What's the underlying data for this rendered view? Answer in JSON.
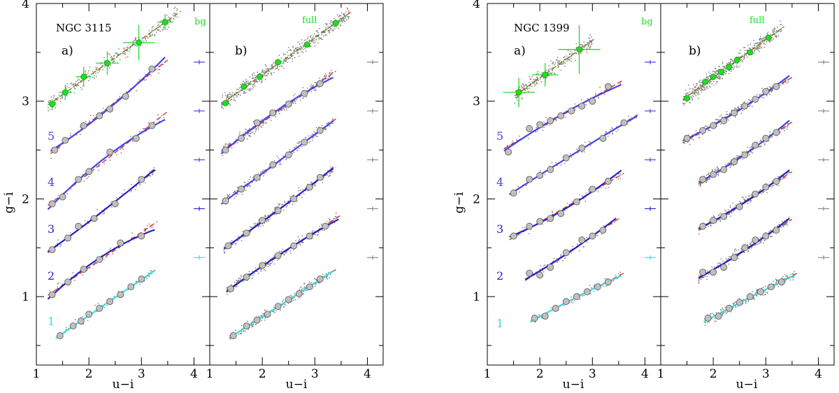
{
  "figure": {
    "xlabel": "u−i",
    "ylabel": "g−i",
    "xlim": [
      1,
      4.3
    ],
    "ylim": [
      0.3,
      4
    ],
    "xticks": [
      "1",
      "2",
      "3",
      "4"
    ],
    "yticks": [
      "1",
      "2",
      "3",
      "4"
    ]
  },
  "chart_data": [
    {
      "type": "scatter",
      "galaxy": "NGC 3115",
      "panel": "a)",
      "title": "NGC 3115",
      "xlabel": "u−i",
      "ylabel": "g−i",
      "xlim": [
        1,
        4.3
      ],
      "ylim": [
        0.3,
        4
      ],
      "bg_label": "bg",
      "row_labels": [
        "1",
        "2",
        "3",
        "4",
        "5"
      ],
      "series": [
        {
          "name": "bg",
          "color": "#22dd22",
          "x": [
            1.3,
            1.55,
            1.9,
            2.35,
            2.95,
            3.45
          ],
          "y": [
            2.97,
            3.09,
            3.25,
            3.39,
            3.6,
            3.81
          ],
          "xerr": [
            0.08,
            0.12,
            0.15,
            0.22,
            0.3,
            0.15
          ],
          "yerr": [
            0.05,
            0.08,
            0.1,
            0.12,
            0.18,
            0.08
          ]
        },
        {
          "name": "5",
          "color": "#4444ee",
          "x": [
            1.35,
            1.55,
            1.9,
            2.2,
            2.4,
            2.7,
            3.2
          ],
          "y": [
            2.5,
            2.6,
            2.75,
            2.85,
            2.92,
            3.05,
            3.33
          ],
          "offset": 2.4
        },
        {
          "name": "4",
          "color": "#4444ee",
          "x": [
            1.3,
            1.5,
            1.8,
            2.0,
            2.4,
            2.9,
            3.2
          ],
          "y": [
            1.95,
            2.02,
            2.2,
            2.28,
            2.48,
            2.62,
            2.75
          ],
          "offset": 1.9
        },
        {
          "name": "3",
          "color": "#2222cc",
          "x": [
            1.3,
            1.6,
            1.8,
            2.1,
            2.5,
            3.0
          ],
          "y": [
            1.48,
            1.6,
            1.72,
            1.8,
            1.95,
            2.2
          ],
          "offset": 1.4
        },
        {
          "name": "2",
          "color": "#2222cc",
          "x": [
            1.3,
            1.6,
            1.9,
            2.2,
            2.6,
            3.0
          ],
          "y": [
            1.02,
            1.15,
            1.28,
            1.38,
            1.55,
            1.62
          ],
          "offset": 0.9
        },
        {
          "name": "1",
          "color": "#33dddd",
          "x": [
            1.45,
            1.7,
            1.85,
            2.0,
            2.2,
            2.4,
            2.6,
            2.8,
            3.0
          ],
          "y": [
            0.6,
            0.7,
            0.75,
            0.82,
            0.88,
            0.95,
            1.02,
            1.1,
            1.18
          ],
          "offset": 0.4
        }
      ]
    },
    {
      "type": "scatter",
      "galaxy": "NGC 3115",
      "panel": "b)",
      "xlabel": "u−i",
      "xlim": [
        1,
        4.3
      ],
      "ylim": [
        0.3,
        4
      ],
      "bg_label": "full",
      "series": [
        {
          "name": "full",
          "color": "#22dd22",
          "x": [
            1.3,
            1.65,
            1.95,
            2.3,
            2.85,
            3.4
          ],
          "y": [
            2.98,
            3.15,
            3.25,
            3.4,
            3.58,
            3.8
          ]
        },
        {
          "name": "5",
          "color": "#4444ee",
          "x": [
            1.3,
            1.6,
            1.9,
            2.2,
            2.5,
            2.8,
            3.1
          ],
          "y": [
            2.5,
            2.62,
            2.78,
            2.88,
            2.97,
            3.08,
            3.18
          ]
        },
        {
          "name": "4",
          "color": "#4444ee",
          "x": [
            1.3,
            1.6,
            1.9,
            2.2,
            2.5,
            2.8,
            3.1
          ],
          "y": [
            1.98,
            2.1,
            2.22,
            2.35,
            2.45,
            2.58,
            2.7
          ]
        },
        {
          "name": "3",
          "color": "#2222cc",
          "x": [
            1.35,
            1.7,
            2.0,
            2.3,
            2.6,
            2.9,
            3.1
          ],
          "y": [
            1.52,
            1.65,
            1.78,
            1.88,
            2.0,
            2.12,
            2.22
          ]
        },
        {
          "name": "2",
          "color": "#2222cc",
          "x": [
            1.4,
            1.7,
            2.0,
            2.3,
            2.6,
            2.9,
            3.2
          ],
          "y": [
            1.08,
            1.2,
            1.32,
            1.42,
            1.52,
            1.62,
            1.72
          ]
        },
        {
          "name": "1",
          "color": "#33dddd",
          "x": [
            1.45,
            1.7,
            1.9,
            2.1,
            2.3,
            2.5,
            2.7,
            2.9,
            3.1
          ],
          "y": [
            0.6,
            0.7,
            0.76,
            0.82,
            0.9,
            0.97,
            1.03,
            1.1,
            1.18
          ]
        }
      ]
    },
    {
      "type": "scatter",
      "galaxy": "NGC 1399",
      "panel": "a)",
      "title": "NGC 1399",
      "xlabel": "u−i",
      "xlim": [
        1,
        4.3
      ],
      "ylim": [
        0.3,
        4
      ],
      "bg_label": "bg",
      "row_labels": [
        "1",
        "2",
        "3",
        "4",
        "5"
      ],
      "series": [
        {
          "name": "bg",
          "color": "#22dd22",
          "x": [
            1.6,
            2.1,
            2.75
          ],
          "y": [
            3.09,
            3.27,
            3.53
          ],
          "xerr": [
            0.3,
            0.25,
            0.4
          ],
          "yerr": [
            0.15,
            0.12,
            0.25
          ]
        },
        {
          "name": "5",
          "color": "#4444ee",
          "x": [
            1.4,
            1.8,
            2.0,
            2.2,
            2.4,
            2.6,
            2.8,
            3.0,
            3.3
          ],
          "y": [
            2.48,
            2.72,
            2.76,
            2.8,
            2.85,
            2.9,
            2.95,
            3.0,
            3.15
          ]
        },
        {
          "name": "4",
          "color": "#4444ee",
          "x": [
            1.5,
            1.8,
            2.0,
            2.2,
            2.5,
            2.8,
            3.2,
            3.6
          ],
          "y": [
            2.06,
            2.2,
            2.24,
            2.3,
            2.42,
            2.52,
            2.62,
            2.78
          ]
        },
        {
          "name": "3",
          "color": "#2222cc",
          "x": [
            1.5,
            1.8,
            2.0,
            2.2,
            2.4,
            2.7,
            3.0,
            3.3
          ],
          "y": [
            1.62,
            1.72,
            1.77,
            1.8,
            1.85,
            1.97,
            2.1,
            2.18
          ]
        },
        {
          "name": "2",
          "color": "#2222cc",
          "x": [
            1.8,
            2.0,
            2.2,
            2.5,
            2.8,
            3.0,
            3.2
          ],
          "y": [
            1.24,
            1.22,
            1.3,
            1.45,
            1.58,
            1.62,
            1.68
          ]
        },
        {
          "name": "1",
          "color": "#33dddd",
          "x": [
            1.9,
            2.1,
            2.3,
            2.5,
            2.7,
            2.9,
            3.1,
            3.3
          ],
          "y": [
            0.78,
            0.8,
            0.88,
            0.95,
            1.0,
            1.05,
            1.1,
            1.15
          ]
        }
      ]
    },
    {
      "type": "scatter",
      "galaxy": "NGC 1399",
      "panel": "b)",
      "xlabel": "u−i",
      "xlim": [
        1,
        4.3
      ],
      "ylim": [
        0.3,
        4
      ],
      "bg_label": "full",
      "series": [
        {
          "name": "full",
          "color": "#22dd22",
          "x": [
            1.5,
            1.85,
            2.0,
            2.15,
            2.3,
            2.45,
            2.7,
            3.05
          ],
          "y": [
            3.03,
            3.2,
            3.25,
            3.3,
            3.35,
            3.42,
            3.5,
            3.65
          ]
        },
        {
          "name": "5",
          "color": "#4444ee",
          "x": [
            1.5,
            1.8,
            2.0,
            2.2,
            2.4,
            2.6,
            2.8,
            3.0,
            3.2
          ],
          "y": [
            2.62,
            2.7,
            2.75,
            2.8,
            2.88,
            2.95,
            3.02,
            3.1,
            3.15
          ]
        },
        {
          "name": "4",
          "color": "#4444ee",
          "x": [
            1.8,
            2.0,
            2.2,
            2.4,
            2.6,
            2.8,
            3.0,
            3.2
          ],
          "y": [
            2.2,
            2.25,
            2.3,
            2.38,
            2.45,
            2.55,
            2.62,
            2.68
          ]
        },
        {
          "name": "3",
          "color": "#2222cc",
          "x": [
            1.8,
            2.0,
            2.2,
            2.5,
            2.8,
            3.0,
            3.2
          ],
          "y": [
            1.72,
            1.78,
            1.82,
            1.92,
            2.05,
            2.12,
            2.18
          ]
        },
        {
          "name": "2",
          "color": "#2222cc",
          "x": [
            1.8,
            2.0,
            2.2,
            2.4,
            2.6,
            2.8,
            3.0,
            3.2
          ],
          "y": [
            1.25,
            1.25,
            1.3,
            1.4,
            1.5,
            1.58,
            1.62,
            1.68
          ]
        },
        {
          "name": "1",
          "color": "#33dddd",
          "x": [
            1.9,
            2.1,
            2.3,
            2.5,
            2.7,
            2.9,
            3.1,
            3.3
          ],
          "y": [
            0.78,
            0.8,
            0.88,
            0.94,
            1.0,
            1.05,
            1.1,
            1.15
          ]
        }
      ]
    }
  ],
  "colors": {
    "bg": "#22dd22",
    "fit_dashed": "#dd2222",
    "row5": "#4444ee",
    "row4": "#4444ee",
    "row3": "#2222cc",
    "row2": "#2222cc",
    "row1": "#33dddd",
    "marker_fill": "#c0c0c0",
    "scatter": "#888888"
  }
}
